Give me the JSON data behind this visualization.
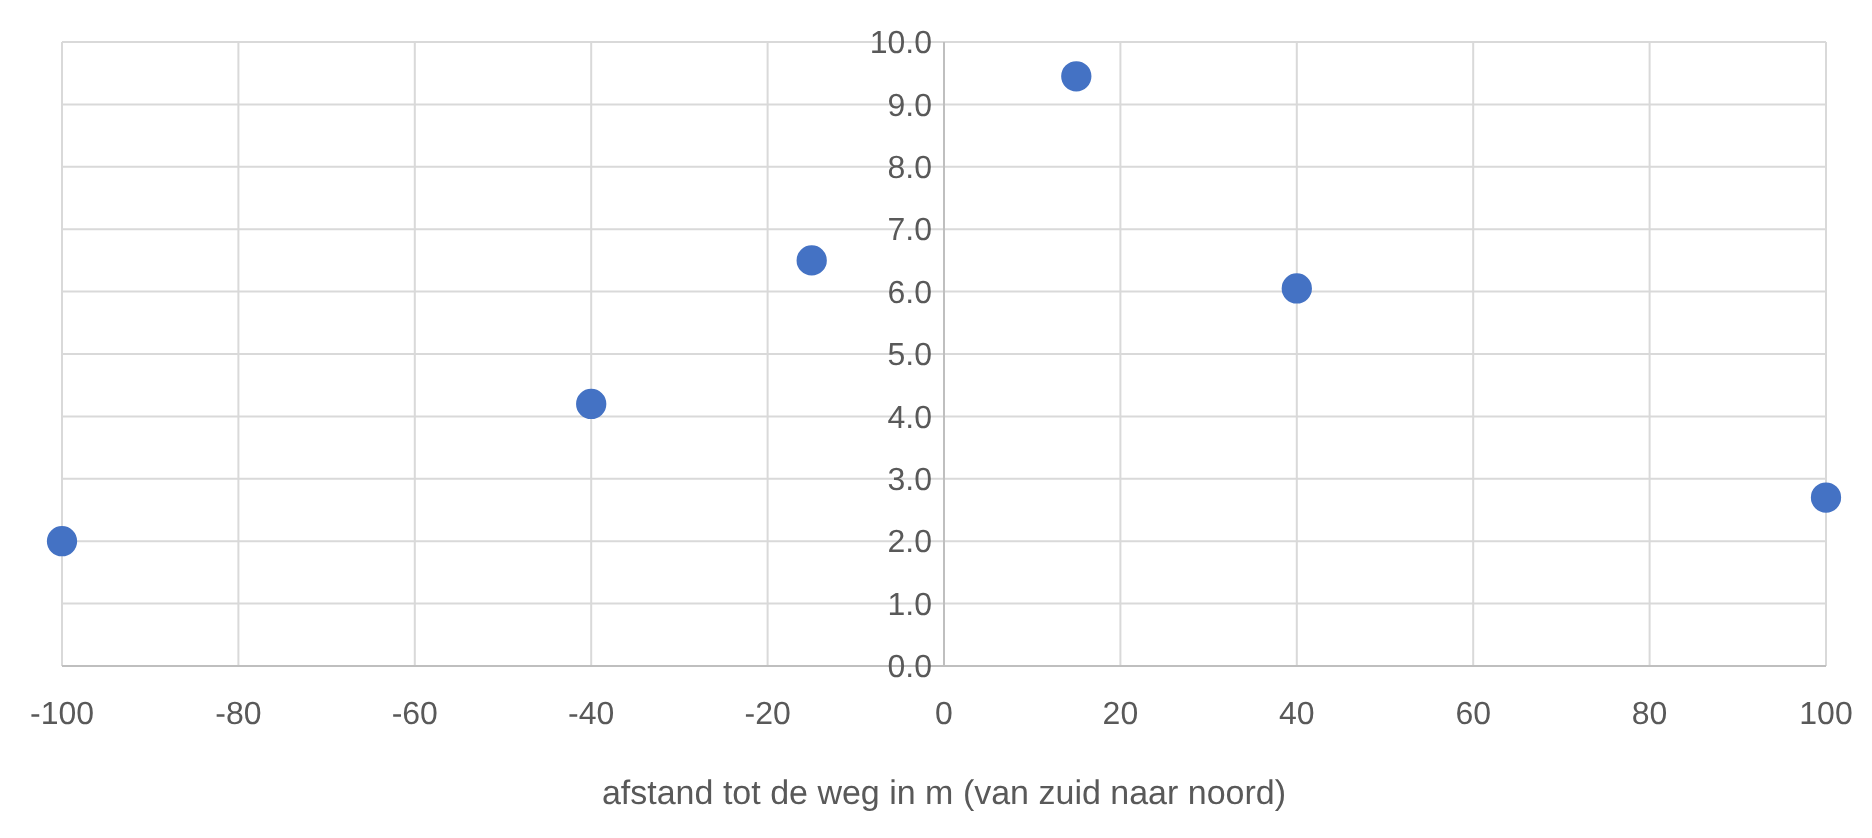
{
  "chart_data": {
    "type": "scatter",
    "xlabel": "afstand tot de weg in m (van zuid naar noord)",
    "x": [
      -100,
      -40,
      -15,
      15,
      40,
      100
    ],
    "series": [
      {
        "color": "#4472c4",
        "values": [
          2.0,
          4.2,
          6.5,
          9.45,
          6.05,
          2.7
        ]
      }
    ],
    "xlim": [
      -100,
      100
    ],
    "xticks": [
      -100,
      -80,
      -60,
      -40,
      -20,
      0,
      20,
      40,
      60,
      80,
      100
    ],
    "ylim": [
      0,
      10
    ],
    "yticks": [
      {
        "value": 0,
        "label": "0.0"
      },
      {
        "value": 1,
        "label": "1.0"
      },
      {
        "value": 2,
        "label": "2.0"
      },
      {
        "value": 3,
        "label": "3.0"
      },
      {
        "value": 4,
        "label": "4.0"
      },
      {
        "value": 5,
        "label": "5.0"
      },
      {
        "value": 6,
        "label": "6.0"
      },
      {
        "value": 7,
        "label": "7.0"
      },
      {
        "value": 8,
        "label": "8.0"
      },
      {
        "value": 9,
        "label": "9.0"
      },
      {
        "value": 10,
        "label": "10.0"
      }
    ],
    "grid": true,
    "marker": "circle"
  }
}
